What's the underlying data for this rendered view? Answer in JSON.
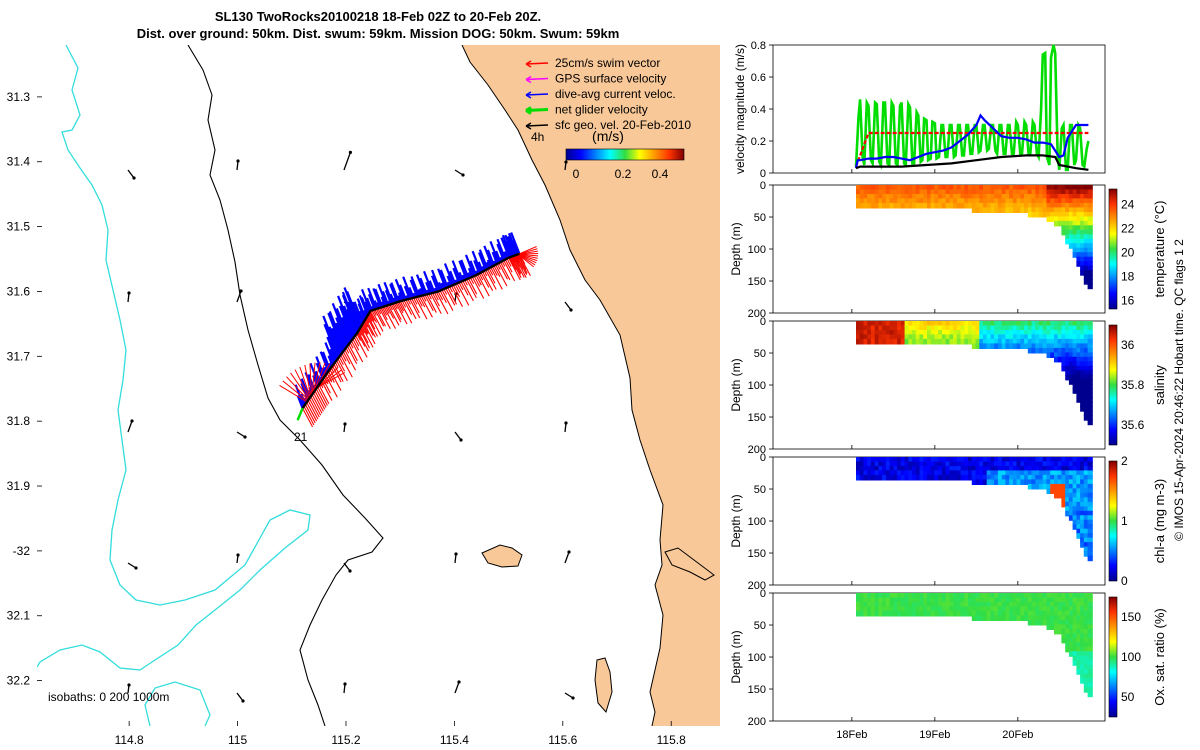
{
  "title": {
    "line1": "SL130 TwoRocks20100218 18-Feb 02Z to 20-Feb 20Z.",
    "line2": "Dist. over ground: 50km. Dist. swum: 59km. Mission DOG: 50km. Swum: 59km"
  },
  "colors": {
    "land": "#f9c898",
    "isobath_shallow": "#33dddd",
    "isobath_deep": "#000000",
    "swim": "#ff0000",
    "gps": "#ff00ff",
    "dive_avg": "#0000ff",
    "net": "#00dd00",
    "sfc_geo": "#000000"
  },
  "copyright": "© IMOS 15-Apr-2024 20:46:22 Hobart time. QC flags 1  2",
  "chart_data": [
    {
      "type": "map",
      "title": "SL130 TwoRocks20100218 18-Feb 02Z to 20-Feb 20Z.",
      "xlim": [
        114.63,
        115.89
      ],
      "ylim": [
        -32.27,
        -31.22
      ],
      "x_ticks": [
        114.8,
        115,
        115.2,
        115.4,
        115.6,
        115.8
      ],
      "x_tick_labels": [
        "114.8",
        "115",
        "115.2",
        "115.4",
        "115.6",
        "115.8"
      ],
      "y_ticks": [
        -31.3,
        -31.4,
        -31.5,
        -31.6,
        -31.7,
        -31.8,
        -31.9,
        -32,
        -32.1,
        -32.2
      ],
      "y_tick_labels": [
        "31.3",
        "31.4",
        "31.5",
        "31.6",
        "31.7",
        "31.8",
        "31.9",
        "-32",
        "32.1",
        "32.2"
      ],
      "legend": [
        {
          "label": "25cm/s swim vector",
          "color": "#ff0000"
        },
        {
          "label": "GPS surface velocity",
          "color": "#ff00ff"
        },
        {
          "label": "dive-avg current veloc.",
          "color": "#0000ff"
        },
        {
          "label": "net glider velocity",
          "color": "#00dd00"
        },
        {
          "label": "sfc geo. vel. 20-Feb-2010",
          "color": "#000000"
        }
      ],
      "colorbar": {
        "label": "(m/s)",
        "ticks": [
          "0",
          "0.2",
          "0.4"
        ],
        "range": [
          0,
          0.5
        ]
      },
      "isobath_label": "isobaths: 0  200  1000m",
      "annotations": [
        {
          "text": "4h",
          "lon": 115.525,
          "lat": -31.39
        },
        {
          "text": "21",
          "lon": 115.105,
          "lat": -31.812
        }
      ],
      "track": [
        [
          115.12,
          -31.78
        ],
        [
          115.17,
          -31.72
        ],
        [
          115.22,
          -31.665
        ],
        [
          115.245,
          -31.63
        ],
        [
          115.3,
          -31.615
        ],
        [
          115.37,
          -31.6
        ],
        [
          115.44,
          -31.575
        ],
        [
          115.5,
          -31.548
        ],
        [
          115.52,
          -31.542
        ]
      ]
    },
    {
      "type": "line",
      "ylabel": "velocity magnitude (m/s)",
      "ylim": [
        0,
        0.8
      ],
      "y_ticks": [
        0,
        0.2,
        0.4,
        0.6,
        0.8
      ],
      "y_tick_labels": [
        "0",
        "0.2",
        "0.4",
        "0.6",
        "0.8"
      ],
      "series": [
        {
          "name": "net glider velocity",
          "color": "#00dd00",
          "x": [
            0.05,
            0.08,
            0.1,
            0.13,
            0.15,
            0.18,
            0.2,
            0.23,
            0.25,
            0.28,
            0.3,
            0.33,
            0.35,
            0.38,
            0.4,
            0.43,
            0.45,
            0.48,
            0.5,
            0.53,
            0.55,
            0.58,
            0.6,
            0.63,
            0.65,
            0.68,
            0.7,
            0.73,
            0.75,
            0.78,
            0.8,
            0.83,
            0.85,
            0.87,
            0.9,
            0.92,
            0.95,
            0.97,
            1.0,
            1.02,
            1.05,
            1.08,
            1.1,
            1.13,
            1.15,
            1.18,
            1.2,
            1.23,
            1.25,
            1.28,
            1.3,
            1.33,
            1.35,
            1.38,
            1.4,
            1.43,
            1.45,
            1.48,
            1.5,
            1.53,
            1.55,
            1.58,
            1.6,
            1.63,
            1.65,
            1.68,
            1.7,
            1.73,
            1.75,
            1.78,
            1.8,
            1.83,
            1.85,
            1.88,
            1.9,
            1.93,
            1.95,
            1.98,
            2.0,
            2.03,
            2.05,
            2.08,
            2.1,
            2.13,
            2.15,
            2.18,
            2.2,
            2.23,
            2.25,
            2.28,
            2.3,
            2.33,
            2.35,
            2.38,
            2.4,
            2.43,
            2.45,
            2.48,
            2.5,
            2.53,
            2.55,
            2.58,
            2.6,
            2.63,
            2.65,
            2.68,
            2.7,
            2.73,
            2.75,
            2.78,
            2.8,
            2.83,
            2.85
          ],
          "values": [
            0.04,
            0.35,
            0.46,
            0.1,
            0.05,
            0.44,
            0.42,
            0.08,
            0.06,
            0.44,
            0.43,
            0.07,
            0.05,
            0.44,
            0.44,
            0.06,
            0.05,
            0.44,
            0.42,
            0.06,
            0.05,
            0.42,
            0.44,
            0.06,
            0.05,
            0.43,
            0.41,
            0.06,
            0.06,
            0.38,
            0.36,
            0.07,
            0.08,
            0.34,
            0.33,
            0.08,
            0.09,
            0.32,
            0.31,
            0.09,
            0.1,
            0.3,
            0.3,
            0.1,
            0.1,
            0.3,
            0.3,
            0.1,
            0.11,
            0.3,
            0.3,
            0.11,
            0.11,
            0.3,
            0.3,
            0.12,
            0.12,
            0.3,
            0.3,
            0.13,
            0.14,
            0.3,
            0.3,
            0.14,
            0.15,
            0.3,
            0.3,
            0.14,
            0.12,
            0.3,
            0.3,
            0.12,
            0.12,
            0.3,
            0.3,
            0.12,
            0.12,
            0.32,
            0.3,
            0.12,
            0.12,
            0.32,
            0.3,
            0.12,
            0.12,
            0.32,
            0.3,
            0.12,
            0.1,
            0.4,
            0.74,
            0.75,
            0.1,
            0.05,
            0.72,
            0.8,
            0.75,
            0.1,
            0.02,
            0.28,
            0.3,
            0.02,
            0.02,
            0.3,
            0.3,
            0.05,
            0.08,
            0.3,
            0.28,
            0.05,
            0.04,
            0.15,
            0.2
          ]
        },
        {
          "name": "25cm/s swim vector",
          "color": "#ff0000",
          "x": [
            0.05,
            0.2,
            0.6,
            1.0,
            1.5,
            2.0,
            2.5,
            2.85
          ],
          "values": [
            0.04,
            0.25,
            0.25,
            0.25,
            0.25,
            0.25,
            0.25,
            0.25
          ]
        },
        {
          "name": "dive-avg current veloc.",
          "color": "#0000ff",
          "x": [
            0.05,
            0.07,
            0.1,
            0.2,
            0.3,
            0.4,
            0.5,
            0.6,
            0.7,
            0.8,
            0.9,
            1.0,
            1.1,
            1.2,
            1.3,
            1.4,
            1.5,
            1.55,
            1.6,
            1.7,
            1.8,
            1.9,
            2.0,
            2.1,
            2.2,
            2.3,
            2.4,
            2.5,
            2.55,
            2.6,
            2.7,
            2.85
          ],
          "values": [
            0.03,
            0.08,
            0.08,
            0.09,
            0.09,
            0.1,
            0.1,
            0.09,
            0.08,
            0.1,
            0.12,
            0.13,
            0.14,
            0.16,
            0.2,
            0.24,
            0.3,
            0.36,
            0.33,
            0.28,
            0.23,
            0.22,
            0.22,
            0.21,
            0.19,
            0.19,
            0.18,
            0.1,
            0.11,
            0.22,
            0.3,
            0.3
          ]
        },
        {
          "name": "sfc geo. vel. 20-Feb-2010",
          "color": "#000000",
          "x": [
            0.05,
            0.1,
            0.3,
            0.6,
            0.9,
            1.2,
            1.5,
            1.8,
            2.1,
            2.3,
            2.45,
            2.5,
            2.6,
            2.7,
            2.85
          ],
          "values": [
            0.03,
            0.04,
            0.04,
            0.04,
            0.05,
            0.06,
            0.08,
            0.1,
            0.11,
            0.11,
            0.1,
            0.05,
            0.04,
            0.03,
            0.02
          ]
        }
      ]
    },
    {
      "type": "heatmap",
      "panels": [
        {
          "ylabel": "Depth (m)",
          "cbar_label": "temperature (°C)",
          "cbar_ticks": [
            "16",
            "18",
            "20",
            "22",
            "24"
          ],
          "range": [
            15.3,
            25.3
          ],
          "ylim": [
            0,
            200
          ],
          "y_ticks": [
            "0",
            "50",
            "100",
            "150",
            "200"
          ]
        },
        {
          "ylabel": "Depth (m)",
          "cbar_label": "salinity",
          "cbar_ticks": [
            "35.6",
            "35.8",
            "36"
          ],
          "range": [
            35.5,
            36.1
          ],
          "ylim": [
            0,
            200
          ],
          "y_ticks": [
            "0",
            "50",
            "100",
            "150",
            "200"
          ]
        },
        {
          "ylabel": "Depth (m)",
          "cbar_label": "chl-a (mg m-3)",
          "cbar_ticks": [
            "0",
            "1",
            "2"
          ],
          "range": [
            0,
            2
          ],
          "ylim": [
            0,
            200
          ],
          "y_ticks": [
            "0",
            "50",
            "100",
            "150",
            "200"
          ]
        },
        {
          "ylabel": "Depth (m)",
          "cbar_label": "Ox. sat. ratio (%)",
          "cbar_ticks": [
            "50",
            "100",
            "150"
          ],
          "range": [
            25,
            175
          ],
          "ylim": [
            0,
            200
          ],
          "y_ticks": [
            "0",
            "50",
            "100",
            "150",
            "200"
          ]
        }
      ],
      "x_tick_labels": [
        "18Feb",
        "19Feb",
        "20Feb"
      ]
    }
  ]
}
